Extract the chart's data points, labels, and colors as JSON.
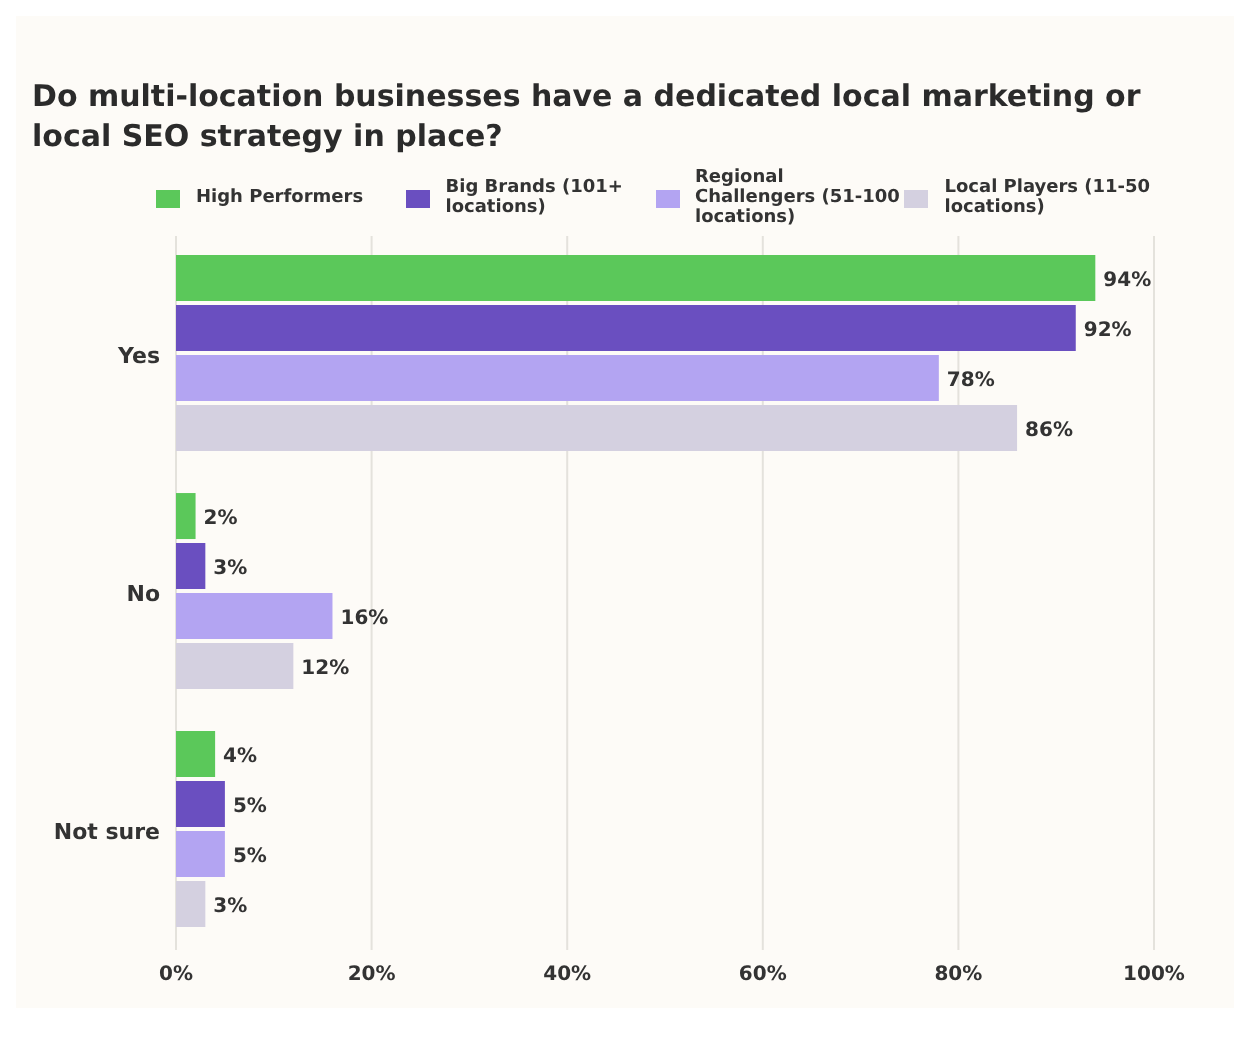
{
  "chart_data": {
    "type": "bar",
    "orientation": "horizontal",
    "title": "Do multi-location businesses have a dedicated local marketing or local SEO strategy in place?",
    "categories": [
      "Yes",
      "No",
      "Not sure"
    ],
    "series": [
      {
        "name": "High Performers",
        "color": "#5bc85a",
        "values": [
          94,
          2,
          4
        ],
        "value_labels": [
          "94%",
          "2%",
          "4%"
        ]
      },
      {
        "name": "Big Brands (101+ locations)",
        "color": "#6a4fc0",
        "values": [
          92,
          3,
          5
        ],
        "value_labels": [
          "92%",
          "3%",
          "5%"
        ]
      },
      {
        "name": "Regional Challengers (51-100 locations)",
        "color": "#b3a4f2",
        "values": [
          78,
          16,
          5
        ],
        "value_labels": [
          "78%",
          "16%",
          "5%"
        ]
      },
      {
        "name": "Local Players (11-50 locations)",
        "color": "#d4d0e0",
        "values": [
          86,
          12,
          3
        ],
        "value_labels": [
          "86%",
          "12%",
          "3%"
        ]
      }
    ],
    "xlim": [
      0,
      100
    ],
    "xticks": [
      {
        "value": 0,
        "label": "0%"
      },
      {
        "value": 20,
        "label": "20%"
      },
      {
        "value": 40,
        "label": "40%"
      },
      {
        "value": 60,
        "label": "60%"
      },
      {
        "value": 80,
        "label": "80%"
      },
      {
        "value": 100,
        "label": "100%"
      }
    ],
    "grid": "x",
    "legend": "top"
  }
}
